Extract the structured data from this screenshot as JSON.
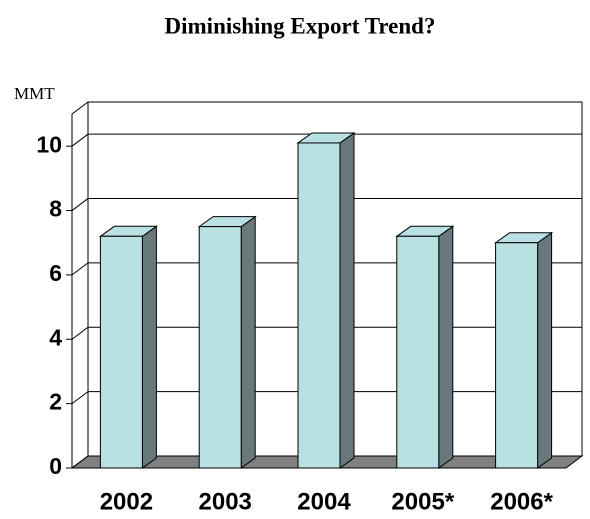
{
  "chart_data": {
    "type": "bar3d",
    "title": "Diminishing Export Trend?",
    "y_label": "MMT",
    "categories": [
      "2002",
      "2003",
      "2004",
      "2005*",
      "2006*"
    ],
    "values": [
      7.2,
      7.5,
      10.1,
      7.2,
      7.0
    ],
    "color": "#b9e0e3",
    "side_color": "#68787b",
    "floor_color": "#808080",
    "ylim": [
      0,
      11
    ],
    "yticks": [
      0,
      2,
      4,
      6,
      8,
      10
    ],
    "grid": true
  }
}
